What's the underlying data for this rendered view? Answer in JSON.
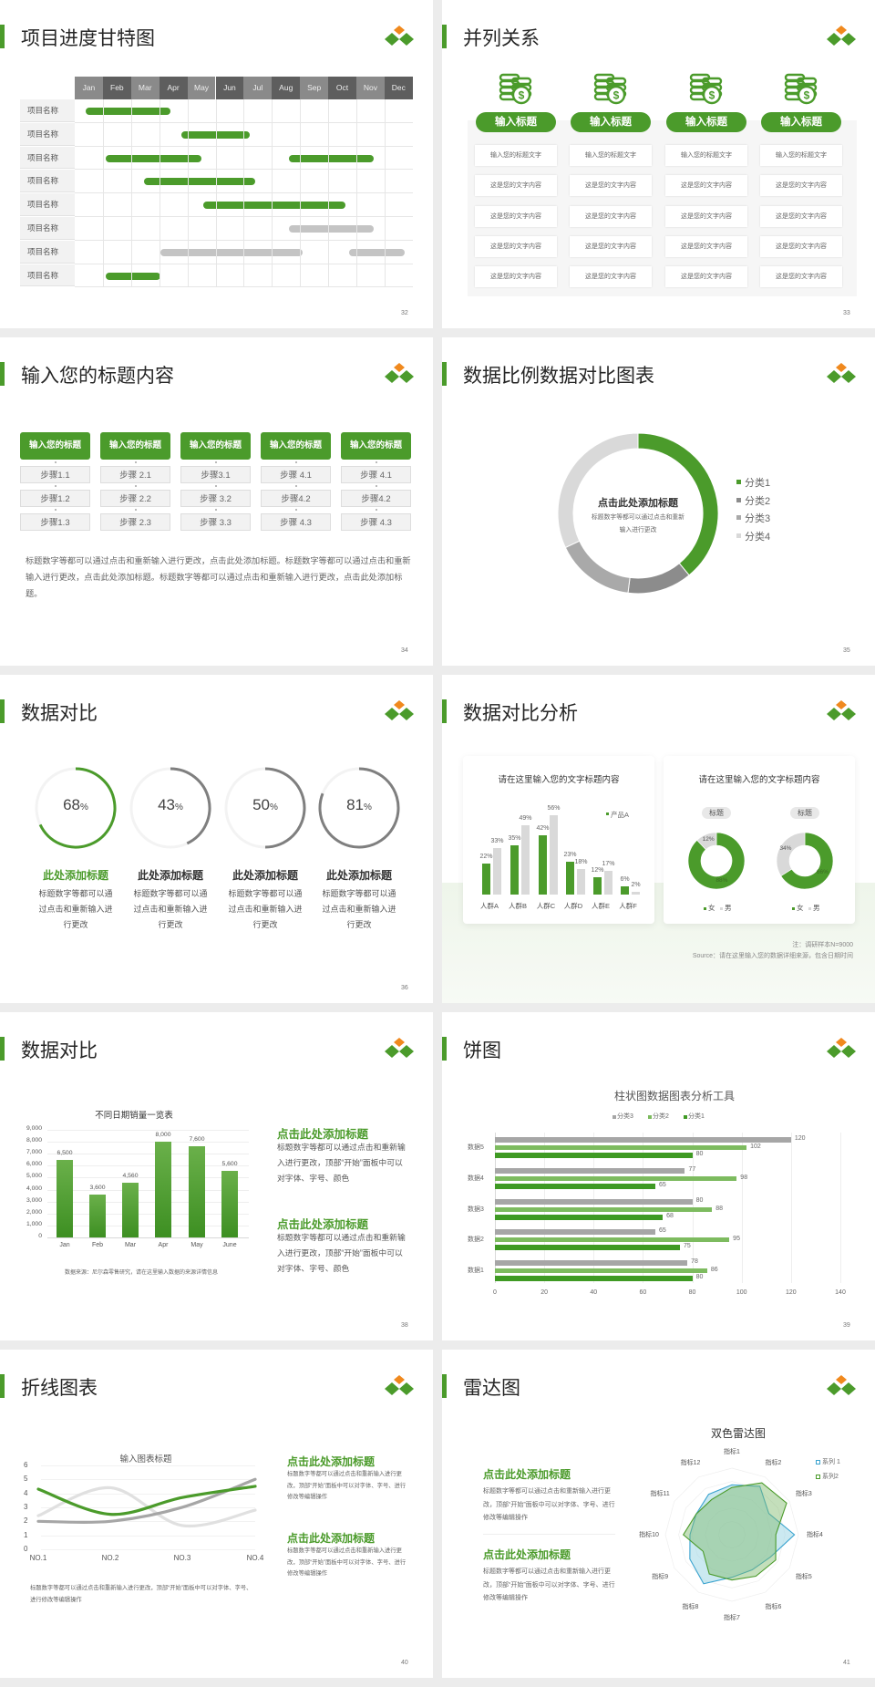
{
  "colors": {
    "green": "#4b9b2b",
    "orange": "#f0891e",
    "gray_dark": "#7f7f7f",
    "gray_mid": "#a6a6a6",
    "gray_light": "#d9d9d9",
    "blue": "#3aa3cf"
  },
  "slides": [
    {
      "title": "项目进度甘特图",
      "page": "32"
    },
    {
      "title": "并列关系",
      "page": "33",
      "columns": [
        {
          "icon": "coins-dollar-icon",
          "label": "输入标题",
          "items": [
            "输入您的标题文字",
            "这是您的文字内容",
            "这是您的文字内容",
            "这是您的文字内容",
            "这是您的文字内容"
          ]
        },
        {
          "icon": "coins-dollar-icon",
          "label": "输入标题",
          "items": [
            "输入您的标题文字",
            "这是您的文字内容",
            "这是您的文字内容",
            "这是您的文字内容",
            "这是您的文字内容"
          ]
        },
        {
          "icon": "coins-dollar-icon",
          "label": "输入标题",
          "items": [
            "输入您的标题文字",
            "这是您的文字内容",
            "这是您的文字内容",
            "这是您的文字内容",
            "这是您的文字内容"
          ]
        },
        {
          "icon": "coins-dollar-icon",
          "label": "输入标题",
          "items": [
            "输入您的标题文字",
            "这是您的文字内容",
            "这是您的文字内容",
            "这是您的文字内容",
            "这是您的文字内容"
          ]
        }
      ]
    },
    {
      "title": "输入您的标题内容",
      "page": "34",
      "columns": [
        {
          "label": "输入您的标题",
          "steps": [
            "步骤1.1",
            "步骤1.2",
            "步骤1.3"
          ]
        },
        {
          "label": "输入您的标题",
          "steps": [
            "步骤 2.1",
            "步骤 2.2",
            "步骤 2.3"
          ]
        },
        {
          "label": "输入您的标题",
          "steps": [
            "步骤3.1",
            "步骤 3.2",
            "步骤 3.3"
          ]
        },
        {
          "label": "输入您的标题",
          "steps": [
            "步骤 4.1",
            "步骤4.2",
            "步骤 4.3"
          ]
        },
        {
          "label": "输入您的标题",
          "steps": [
            "步骤 4.1",
            "步骤4.2",
            "步骤 4.3"
          ]
        }
      ],
      "paragraph": "标题数字等都可以通过点击和重新输入进行更改，点击此处添加标题。标题数字等都可以通过点击和重新输入进行更改，点击此处添加标题。标题数字等都可以通过点击和重新输入进行更改，点击此处添加标题。"
    },
    {
      "title": "数据比例数据对比图表",
      "page": "35",
      "center_title": "点击此处添加标题",
      "center_body": "标题数字等都可以通过点击和重新输入进行更改"
    },
    {
      "title": "数据对比",
      "page": "36",
      "items": [
        {
          "value": 68,
          "percent": "68",
          "title": "此处添加标题",
          "body": "标题数字等都可以通过点击和重新输入进行更改",
          "color": "#4b9b2b"
        },
        {
          "value": 43,
          "percent": "43",
          "title": "此处添加标题",
          "body": "标题数字等都可以通过点击和重新输入进行更改",
          "color": "#7f7f7f"
        },
        {
          "value": 50,
          "percent": "50",
          "title": "此处添加标题",
          "body": "标题数字等都可以通过点击和重新输入进行更改",
          "color": "#7f7f7f"
        },
        {
          "value": 81,
          "percent": "81",
          "title": "此处添加标题",
          "body": "标题数字等都可以通过点击和重新输入进行更改",
          "color": "#7f7f7f"
        }
      ],
      "percent_sign": "%"
    },
    {
      "title": "数据对比分析",
      "page": "37",
      "note": "注：调研样本N=9000",
      "source": "Source：请在这里输入您的数据详细来源，包含日期时间"
    },
    {
      "title": "数据对比",
      "page": "38",
      "source": "数据来源：尼尔森零售研究，请在这里输入数据的来源详情信息",
      "blocks": [
        {
          "heading": "点击此处添加标题",
          "body": "标题数字等都可以通过点击和重新输入进行更改，顶部“开始”面板中可以对字体、字号、颜色"
        },
        {
          "heading": "点击此处添加标题",
          "body": "标题数字等都可以通过点击和重新输入进行更改，顶部“开始”面板中可以对字体、字号、颜色"
        }
      ]
    },
    {
      "title": "饼图",
      "page": "39"
    },
    {
      "title": "折线图表",
      "page": "40",
      "caption": "标题数字等都可以通过点击和重新输入进行更改，顶部“开始”面板中可以对字体、字号、进行修改等编辑操作",
      "blocks": [
        {
          "heading": "点击此处添加标题",
          "body": "标题数字等都可以通过点击和重新输入进行更改，顶部“开始”面板中可以对字体、字号、进行修改等编辑操作"
        },
        {
          "heading": "点击此处添加标题",
          "body": "标题数字等都可以通过点击和重新输入进行更改，顶部“开始”面板中可以对字体、字号、进行修改等编辑操作"
        }
      ]
    },
    {
      "title": "雷达图",
      "page": "41",
      "blocks": [
        {
          "heading": "点击此处添加标题",
          "body": "标题数字等都可以通过点击和重新输入进行更改，顶部“开始”面板中可以对字体、字号、进行修改等编辑操作"
        },
        {
          "heading": "点击此处添加标题",
          "body": "标题数字等都可以通过点击和重新输入进行更改，顶部“开始”面板中可以对字体、字号、进行修改等编辑操作"
        }
      ]
    }
  ],
  "chart_data": [
    {
      "type": "gantt",
      "categories": [
        "Jan",
        "Feb",
        "Mar",
        "Apr",
        "May",
        "Jun",
        "Jul",
        "Aug",
        "Sep",
        "Oct",
        "Nov",
        "Dec"
      ],
      "rows": [
        {
          "label": "项目名称",
          "bars": [
            {
              "start": 0.4,
              "end": 3.4,
              "color": "green"
            }
          ]
        },
        {
          "label": "项目名称",
          "bars": [
            {
              "start": 3.8,
              "end": 6.2,
              "color": "green"
            }
          ]
        },
        {
          "label": "项目名称",
          "bars": [
            {
              "start": 1.1,
              "end": 4.5,
              "color": "green"
            },
            {
              "start": 7.6,
              "end": 10.6,
              "color": "green"
            }
          ]
        },
        {
          "label": "项目名称",
          "bars": [
            {
              "start": 2.45,
              "end": 6.4,
              "color": "green"
            }
          ]
        },
        {
          "label": "项目名称",
          "bars": [
            {
              "start": 4.55,
              "end": 9.6,
              "color": "green"
            }
          ]
        },
        {
          "label": "项目名称",
          "bars": [
            {
              "start": 7.6,
              "end": 10.6,
              "color": "gray"
            }
          ]
        },
        {
          "label": "项目名称",
          "bars": [
            {
              "start": 3.05,
              "end": 8.1,
              "color": "gray"
            },
            {
              "start": 9.75,
              "end": 11.7,
              "color": "gray"
            }
          ]
        },
        {
          "label": "项目名称",
          "bars": [
            {
              "start": 1.1,
              "end": 3.05,
              "color": "green"
            }
          ]
        }
      ]
    },
    {
      "type": "pie",
      "categories": [
        "分类1",
        "分类2",
        "分类3",
        "分类4"
      ],
      "values": [
        39,
        13,
        16,
        32
      ],
      "legend": "right"
    },
    {
      "type": "bar",
      "title": "请在这里输入您的文字标题内容",
      "categories": [
        "人群A",
        "人群B",
        "人群C",
        "人群D",
        "人群E",
        "人群F"
      ],
      "series": [
        {
          "name": "产品A",
          "values": [
            22,
            35,
            42,
            23,
            12,
            6
          ]
        },
        {
          "values": [
            33,
            49,
            56,
            18,
            17,
            2
          ]
        }
      ],
      "unit": "%"
    },
    {
      "type": "pie",
      "title": "请在这里输入您的文字标题内容",
      "categories": [
        "女",
        "男"
      ],
      "charts": [
        {
          "label": "标题",
          "values": [
            88,
            12
          ]
        },
        {
          "label": "标题",
          "values": [
            66,
            34
          ]
        }
      ],
      "unit": "%"
    },
    {
      "type": "bar",
      "title": "不同日期销量一览表",
      "categories": [
        "Jan",
        "Feb",
        "Mar",
        "Apr",
        "May",
        "June"
      ],
      "values": [
        6500,
        3600,
        4560,
        8000,
        7600,
        5600
      ],
      "labels": [
        "6,500",
        "3,600",
        "4,560",
        "8,000",
        "7,600",
        "5,600"
      ],
      "ylim": [
        0,
        9000
      ],
      "yticks": [
        "0",
        "1,000",
        "2,000",
        "3,000",
        "4,000",
        "5,000",
        "6,000",
        "7,000",
        "8,000",
        "9,000"
      ],
      "grid": true
    },
    {
      "type": "bar",
      "orientation": "horizontal",
      "title": "柱状图数据图表分析工具",
      "categories": [
        "数据1",
        "数据2",
        "数据3",
        "数据4",
        "数据5"
      ],
      "series": [
        {
          "name": "分类3",
          "values": [
            78,
            65,
            80,
            77,
            120
          ],
          "color": "#a6a6a6"
        },
        {
          "name": "分类2",
          "values": [
            86,
            95,
            88,
            98,
            102
          ],
          "color": "#7dbb5f"
        },
        {
          "name": "分类1",
          "values": [
            80,
            75,
            68,
            65,
            80
          ],
          "color": "#3f9a24"
        }
      ],
      "xlim": [
        0,
        140
      ],
      "xticks": [
        "0",
        "20",
        "40",
        "60",
        "80",
        "100",
        "120",
        "140"
      ],
      "legend": "top",
      "grid": true
    },
    {
      "type": "line",
      "title": "输入图表标题",
      "categories": [
        "NO.1",
        "NO.2",
        "NO.3",
        "NO.4"
      ],
      "series": [
        {
          "values": [
            4.3,
            2.5,
            3.7,
            4.5
          ],
          "color": "#4b9b2b"
        },
        {
          "values": [
            2.0,
            2.0,
            3.0,
            5.0
          ],
          "color": "#a6a6a6"
        },
        {
          "values": [
            2.4,
            4.4,
            1.7,
            2.8
          ],
          "color": "#e0e0e0"
        }
      ],
      "ylim": [
        0,
        6
      ],
      "yticks": [
        "0",
        "1",
        "2",
        "3",
        "4",
        "5",
        "6"
      ],
      "smooth": true,
      "grid": true
    },
    {
      "type": "radar",
      "title": "双色雷达图",
      "categories": [
        "指标1",
        "指标2",
        "指标3",
        "指标4",
        "指标5",
        "指标6",
        "指标7",
        "指标8",
        "指标9",
        "指标10",
        "指标11",
        "指标12"
      ],
      "series": [
        {
          "name": "系列 1",
          "values": [
            75,
            84,
            64,
            94,
            67,
            61,
            64,
            85,
            73,
            63,
            62,
            70
          ],
          "color": "#3aa3cf"
        },
        {
          "name": "系列2",
          "values": [
            71,
            90,
            95,
            66,
            76,
            72,
            68,
            68,
            50,
            73,
            62,
            61
          ],
          "color": "#4b9b2b"
        }
      ],
      "rmax": 100,
      "legend": "top-right"
    }
  ]
}
